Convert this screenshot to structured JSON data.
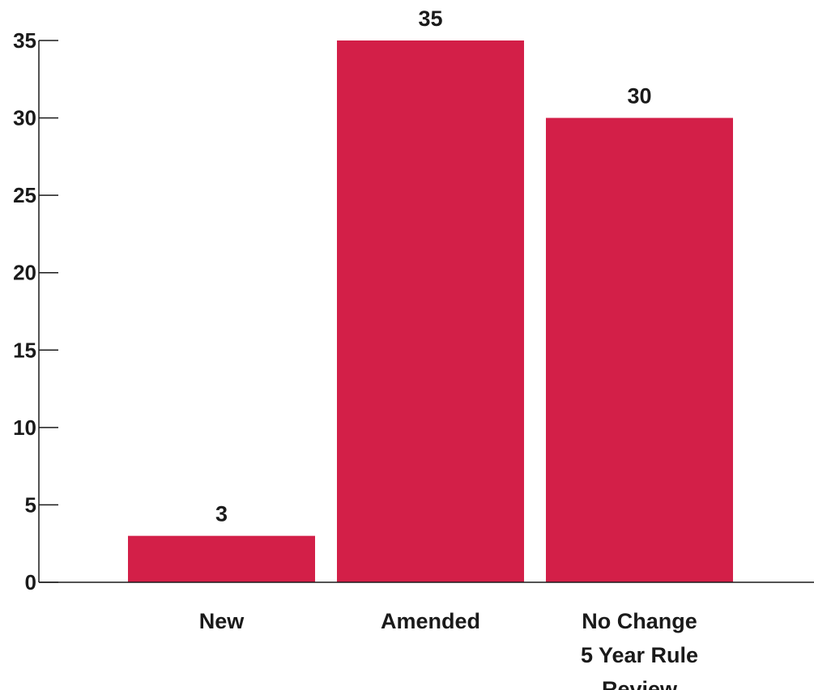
{
  "chart_data": {
    "type": "bar",
    "categories": [
      [
        "New"
      ],
      [
        "Amended"
      ],
      [
        "No Change",
        "5 Year Rule",
        "Review"
      ]
    ],
    "values": [
      3,
      35,
      30
    ],
    "value_labels": [
      "3",
      "35",
      "30"
    ],
    "title": "",
    "xlabel": "",
    "ylabel": "",
    "ylim": [
      0,
      35
    ],
    "yticks": [
      0,
      5,
      10,
      15,
      20,
      25,
      30,
      35
    ],
    "grid": false,
    "legend": "none",
    "bar_color": "#d31f48",
    "text_color": "#1a1a1a"
  }
}
